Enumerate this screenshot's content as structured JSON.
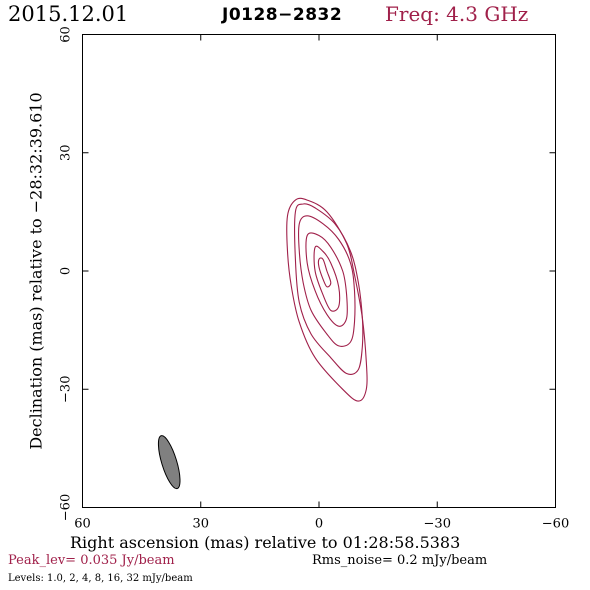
{
  "header": {
    "date": "2015.12.01",
    "source": "J0128−2832",
    "freq": "Freq: 4.3 GHz"
  },
  "footer": {
    "peak": "Peak_lev=  0.035 Jy/beam",
    "rms": "Rms_noise=  0.2 mJy/beam",
    "levels": "Levels: 1.0,   2,   4,   8,  16,  32 mJy/beam"
  },
  "colors": {
    "contour": "#a0204a",
    "beam_fill": "#808080",
    "accent_text": "#a0204a"
  },
  "chart_data": {
    "type": "contour",
    "xlabel": "Right ascension (mas) relative to 01:28:58.5383",
    "ylabel": "Declination (mas) relative to −28:32:39.610",
    "xlim": [
      60,
      -60
    ],
    "ylim": [
      -60,
      60
    ],
    "xticks": [
      60,
      30,
      0,
      -30,
      -60
    ],
    "yticks": [
      -60,
      -30,
      0,
      30,
      60
    ],
    "xtick_labels": [
      "60",
      "30",
      "0",
      "−30",
      "−60"
    ],
    "ytick_labels": [
      "−60",
      "−30",
      "0",
      "30",
      "60"
    ],
    "contour_levels_mJy": [
      1.0,
      2,
      4,
      8,
      16,
      32
    ],
    "contours": [
      {
        "level": 1.0,
        "points": [
          [
            8,
            14
          ],
          [
            6,
            18
          ],
          [
            3,
            18
          ],
          [
            -2,
            15
          ],
          [
            -7,
            7
          ],
          [
            -9,
            -1
          ],
          [
            -11,
            -12
          ],
          [
            -12,
            -23
          ],
          [
            -12,
            -30
          ],
          [
            -10,
            -33
          ],
          [
            -6,
            -30
          ],
          [
            1,
            -22
          ],
          [
            5,
            -13
          ],
          [
            7,
            -4
          ],
          [
            8,
            5
          ]
        ]
      },
      {
        "level": 2,
        "points": [
          [
            6,
            15
          ],
          [
            4,
            17
          ],
          [
            1,
            16
          ],
          [
            -4,
            12
          ],
          [
            -8,
            5
          ],
          [
            -10,
            -3
          ],
          [
            -11,
            -12
          ],
          [
            -11,
            -19
          ],
          [
            -10,
            -25
          ],
          [
            -7,
            -26
          ],
          [
            -3,
            -22
          ],
          [
            2,
            -16
          ],
          [
            5,
            -8
          ],
          [
            6,
            3
          ]
        ]
      },
      {
        "level": 4,
        "points": [
          [
            5,
            12
          ],
          [
            3,
            14
          ],
          [
            -1,
            12
          ],
          [
            -5,
            8
          ],
          [
            -8,
            2
          ],
          [
            -9,
            -5
          ],
          [
            -9,
            -13
          ],
          [
            -8,
            -18
          ],
          [
            -5,
            -19
          ],
          [
            -2,
            -16
          ],
          [
            2,
            -10
          ],
          [
            4,
            -3
          ],
          [
            5,
            5
          ]
        ]
      },
      {
        "level": 8,
        "points": [
          [
            3,
            9
          ],
          [
            0,
            9
          ],
          [
            -3,
            6
          ],
          [
            -6,
            0
          ],
          [
            -7,
            -6
          ],
          [
            -7,
            -12
          ],
          [
            -5,
            -14
          ],
          [
            -2,
            -11
          ],
          [
            1,
            -5
          ],
          [
            3,
            2
          ]
        ]
      },
      {
        "level": 16,
        "points": [
          [
            1,
            6
          ],
          [
            -1,
            5
          ],
          [
            -3,
            2
          ],
          [
            -5,
            -4
          ],
          [
            -5,
            -9
          ],
          [
            -3,
            -10
          ],
          [
            -1,
            -6
          ],
          [
            1,
            0
          ]
        ]
      },
      {
        "level": 32,
        "points": [
          [
            0,
            3
          ],
          [
            -1,
            3
          ],
          [
            -2,
            0
          ],
          [
            -3,
            -3
          ],
          [
            -2,
            -4
          ],
          [
            -1,
            -2
          ],
          [
            0,
            1
          ]
        ]
      }
    ],
    "beam": {
      "center": [
        38,
        -48.5
      ],
      "major_mas": 14,
      "minor_mas": 3.8,
      "pa_deg": -17
    }
  }
}
